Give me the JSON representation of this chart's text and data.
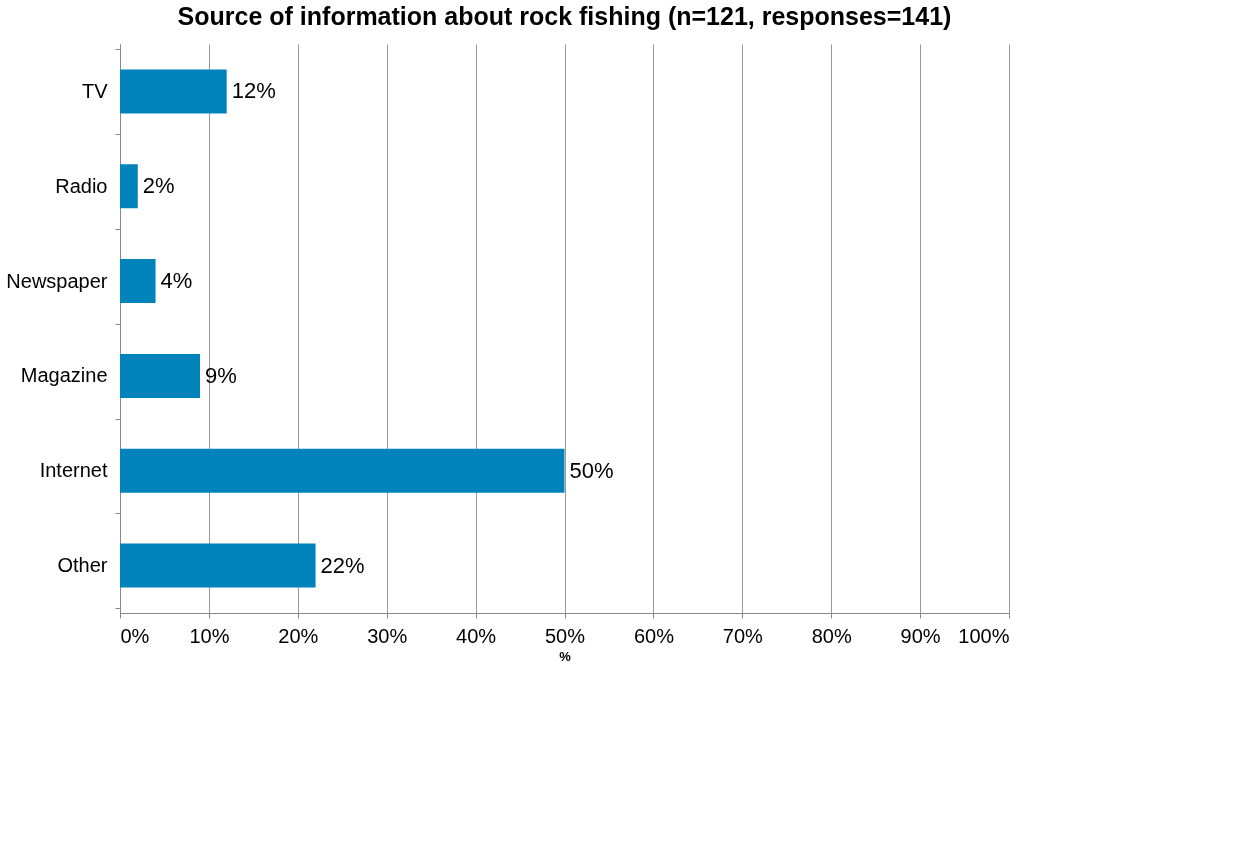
{
  "chart_data": {
    "type": "bar",
    "orientation": "horizontal",
    "title": "Source of information about rock fishing (n=121, responses=141)",
    "xlabel": "%",
    "categories": [
      "TV",
      "Radio",
      "Newspaper",
      "Magazine",
      "Internet",
      "Other"
    ],
    "values": [
      12,
      2,
      4,
      9,
      50,
      22
    ],
    "value_labels": [
      "12%",
      "2%",
      "4%",
      "9%",
      "50%",
      "22%"
    ],
    "color": "#0083ba",
    "xlim": [
      0,
      100
    ],
    "xticks": [
      {
        "value": 0,
        "label": "0%"
      },
      {
        "value": 10,
        "label": "10%"
      },
      {
        "value": 20,
        "label": "20%"
      },
      {
        "value": 30,
        "label": "30%"
      },
      {
        "value": 40,
        "label": "40%"
      },
      {
        "value": 50,
        "label": "50%"
      },
      {
        "value": 60,
        "label": "60%"
      },
      {
        "value": 70,
        "label": "70%"
      },
      {
        "value": 80,
        "label": "80%"
      },
      {
        "value": 90,
        "label": "90%"
      },
      {
        "value": 100,
        "label": "100%"
      }
    ],
    "grid": "x"
  }
}
